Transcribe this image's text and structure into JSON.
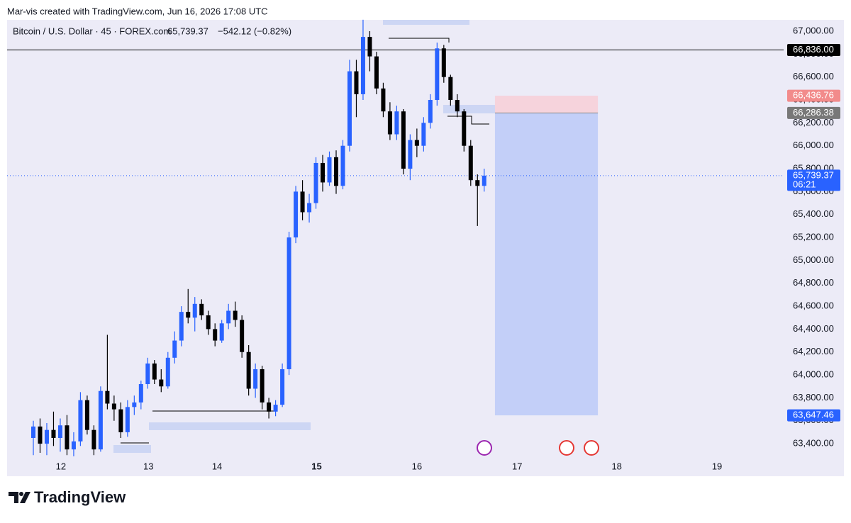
{
  "header": "Mar-vis created with TradingView.com, Jun 16, 2026 17:08 UTC",
  "footer": "TradingView",
  "chart_data": {
    "type": "candlestick",
    "title": "Bitcoin / U.S. Dollar · 45 · FOREX.com",
    "last_price": "65,739.37",
    "change": "−542.12 (−0.82%)",
    "up_color": "#2962ff",
    "down_color": "#000000",
    "open": [
      63450,
      63550,
      63400,
      63520,
      63450,
      63560,
      63350,
      63420,
      63780,
      63520,
      63350,
      63860,
      63750,
      63700,
      63500,
      63720,
      63760,
      63920,
      64100,
      63960,
      63900,
      64150,
      64300,
      64550,
      64500,
      64620,
      64520,
      64400,
      64300,
      64450,
      64560,
      64480,
      64200,
      63880,
      64050,
      63760,
      63680,
      63740,
      64050,
      65200,
      65600,
      65420,
      65500,
      65850,
      65680,
      65900,
      65650,
      66000,
      66650,
      66450,
      66950,
      66780,
      66500,
      66300,
      66100,
      66300,
      65800,
      66050,
      66000,
      66200,
      66400,
      66850,
      66600,
      66400,
      66300,
      66000,
      65700,
      65650
    ],
    "high": [
      63600,
      63620,
      63580,
      63680,
      63620,
      63650,
      63500,
      63850,
      63820,
      63560,
      63900,
      64350,
      63820,
      63760,
      63780,
      63820,
      63950,
      64150,
      64130,
      64050,
      64200,
      64380,
      64600,
      64750,
      64680,
      64660,
      64560,
      64450,
      64480,
      64620,
      64640,
      64520,
      64260,
      64100,
      64080,
      63800,
      63780,
      64100,
      65250,
      65650,
      65700,
      65580,
      65900,
      65920,
      65950,
      65960,
      66050,
      66750,
      66750,
      67100,
      67000,
      66820,
      66550,
      66380,
      66350,
      66320,
      66100,
      66150,
      66250,
      66450,
      66900,
      66880,
      66620,
      66450,
      66320,
      66050,
      65750,
      65800
    ],
    "low": [
      63300,
      63320,
      63300,
      63380,
      63330,
      63300,
      63290,
      63380,
      63480,
      63300,
      63330,
      63700,
      63600,
      63450,
      63460,
      63650,
      63700,
      63880,
      63920,
      63850,
      63880,
      64100,
      64250,
      64450,
      64380,
      64480,
      64350,
      64250,
      64280,
      64400,
      64420,
      64150,
      63820,
      63800,
      63700,
      63620,
      63640,
      63720,
      64000,
      65150,
      65350,
      65330,
      65450,
      65600,
      65650,
      65580,
      65620,
      65950,
      66250,
      66400,
      66650,
      66450,
      66250,
      66050,
      66050,
      65750,
      65700,
      65900,
      65950,
      66150,
      66350,
      66550,
      66350,
      66250,
      65950,
      65650,
      65300,
      65600
    ],
    "close": [
      63550,
      63400,
      63520,
      63450,
      63560,
      63350,
      63420,
      63780,
      63520,
      63350,
      63860,
      63750,
      63700,
      63500,
      63720,
      63760,
      63920,
      64100,
      63960,
      63900,
      64150,
      64300,
      64550,
      64500,
      64620,
      64520,
      64400,
      64300,
      64450,
      64560,
      64480,
      64200,
      63880,
      64050,
      63760,
      63680,
      63740,
      64050,
      65200,
      65600,
      65420,
      65500,
      65850,
      65680,
      65900,
      65650,
      66000,
      66650,
      66450,
      66950,
      66780,
      66500,
      66300,
      66100,
      66300,
      65800,
      66050,
      66000,
      66200,
      66400,
      66850,
      66600,
      66400,
      66300,
      66000,
      65700,
      65650,
      65739.37
    ],
    "xlim": [
      -3.9,
      111.5
    ],
    "xticks": [
      {
        "value": 4.1,
        "label": "12"
      },
      {
        "value": 17.1,
        "label": "13"
      },
      {
        "value": 27.3,
        "label": "14"
      },
      {
        "value": 42.1,
        "label": "15"
      },
      {
        "value": 57.0,
        "label": "16"
      },
      {
        "value": 71.9,
        "label": "17"
      },
      {
        "value": 86.7,
        "label": "18"
      },
      {
        "value": 101.6,
        "label": "19"
      }
    ],
    "ylim": [
      63283,
      67099
    ],
    "yticks": [
      {
        "value": 63400,
        "label": "63,400.00"
      },
      {
        "value": 63600,
        "label": "63,600.00"
      },
      {
        "value": 63800,
        "label": "63,800.00"
      },
      {
        "value": 64000,
        "label": "64,000.00"
      },
      {
        "value": 64200,
        "label": "64,200.00"
      },
      {
        "value": 64400,
        "label": "64,400.00"
      },
      {
        "value": 64600,
        "label": "64,600.00"
      },
      {
        "value": 64800,
        "label": "64,800.00"
      },
      {
        "value": 65000,
        "label": "65,000.00"
      },
      {
        "value": 65200,
        "label": "65,200.00"
      },
      {
        "value": 65400,
        "label": "65,400.00"
      },
      {
        "value": 65600,
        "label": "65,600.00"
      },
      {
        "value": 65800,
        "label": "65,800.00"
      },
      {
        "value": 66000,
        "label": "66,000.00"
      },
      {
        "value": 66200,
        "label": "66,200.00"
      },
      {
        "value": 66400,
        "label": "66,400.00"
      },
      {
        "value": 66600,
        "label": "66,600.00"
      },
      {
        "value": 66800,
        "label": "66,800.00"
      },
      {
        "value": 67000,
        "label": "67,000.00"
      }
    ],
    "levels": [
      {
        "value": 66836,
        "label": "66,836.00",
        "color": "#000000"
      },
      {
        "value": 66436.76,
        "label": "66,436.76",
        "color": "#f28b8b"
      },
      {
        "value": 66286.38,
        "label": "66,286.38",
        "color": "#787878"
      },
      {
        "value": 65739.37,
        "label": "65,739.37",
        "sublabel": "06:21",
        "color": "#2962ff"
      },
      {
        "value": 63647.46,
        "label": "63,647.46",
        "color": "#2962ff"
      }
    ],
    "position": {
      "x": [
        68.6,
        83.9
      ],
      "stop": 66436.76,
      "entry": 66286.38,
      "target": 63647.46,
      "stop_color": "#f6d3dc",
      "target_color": "#c3cff8"
    }
  }
}
